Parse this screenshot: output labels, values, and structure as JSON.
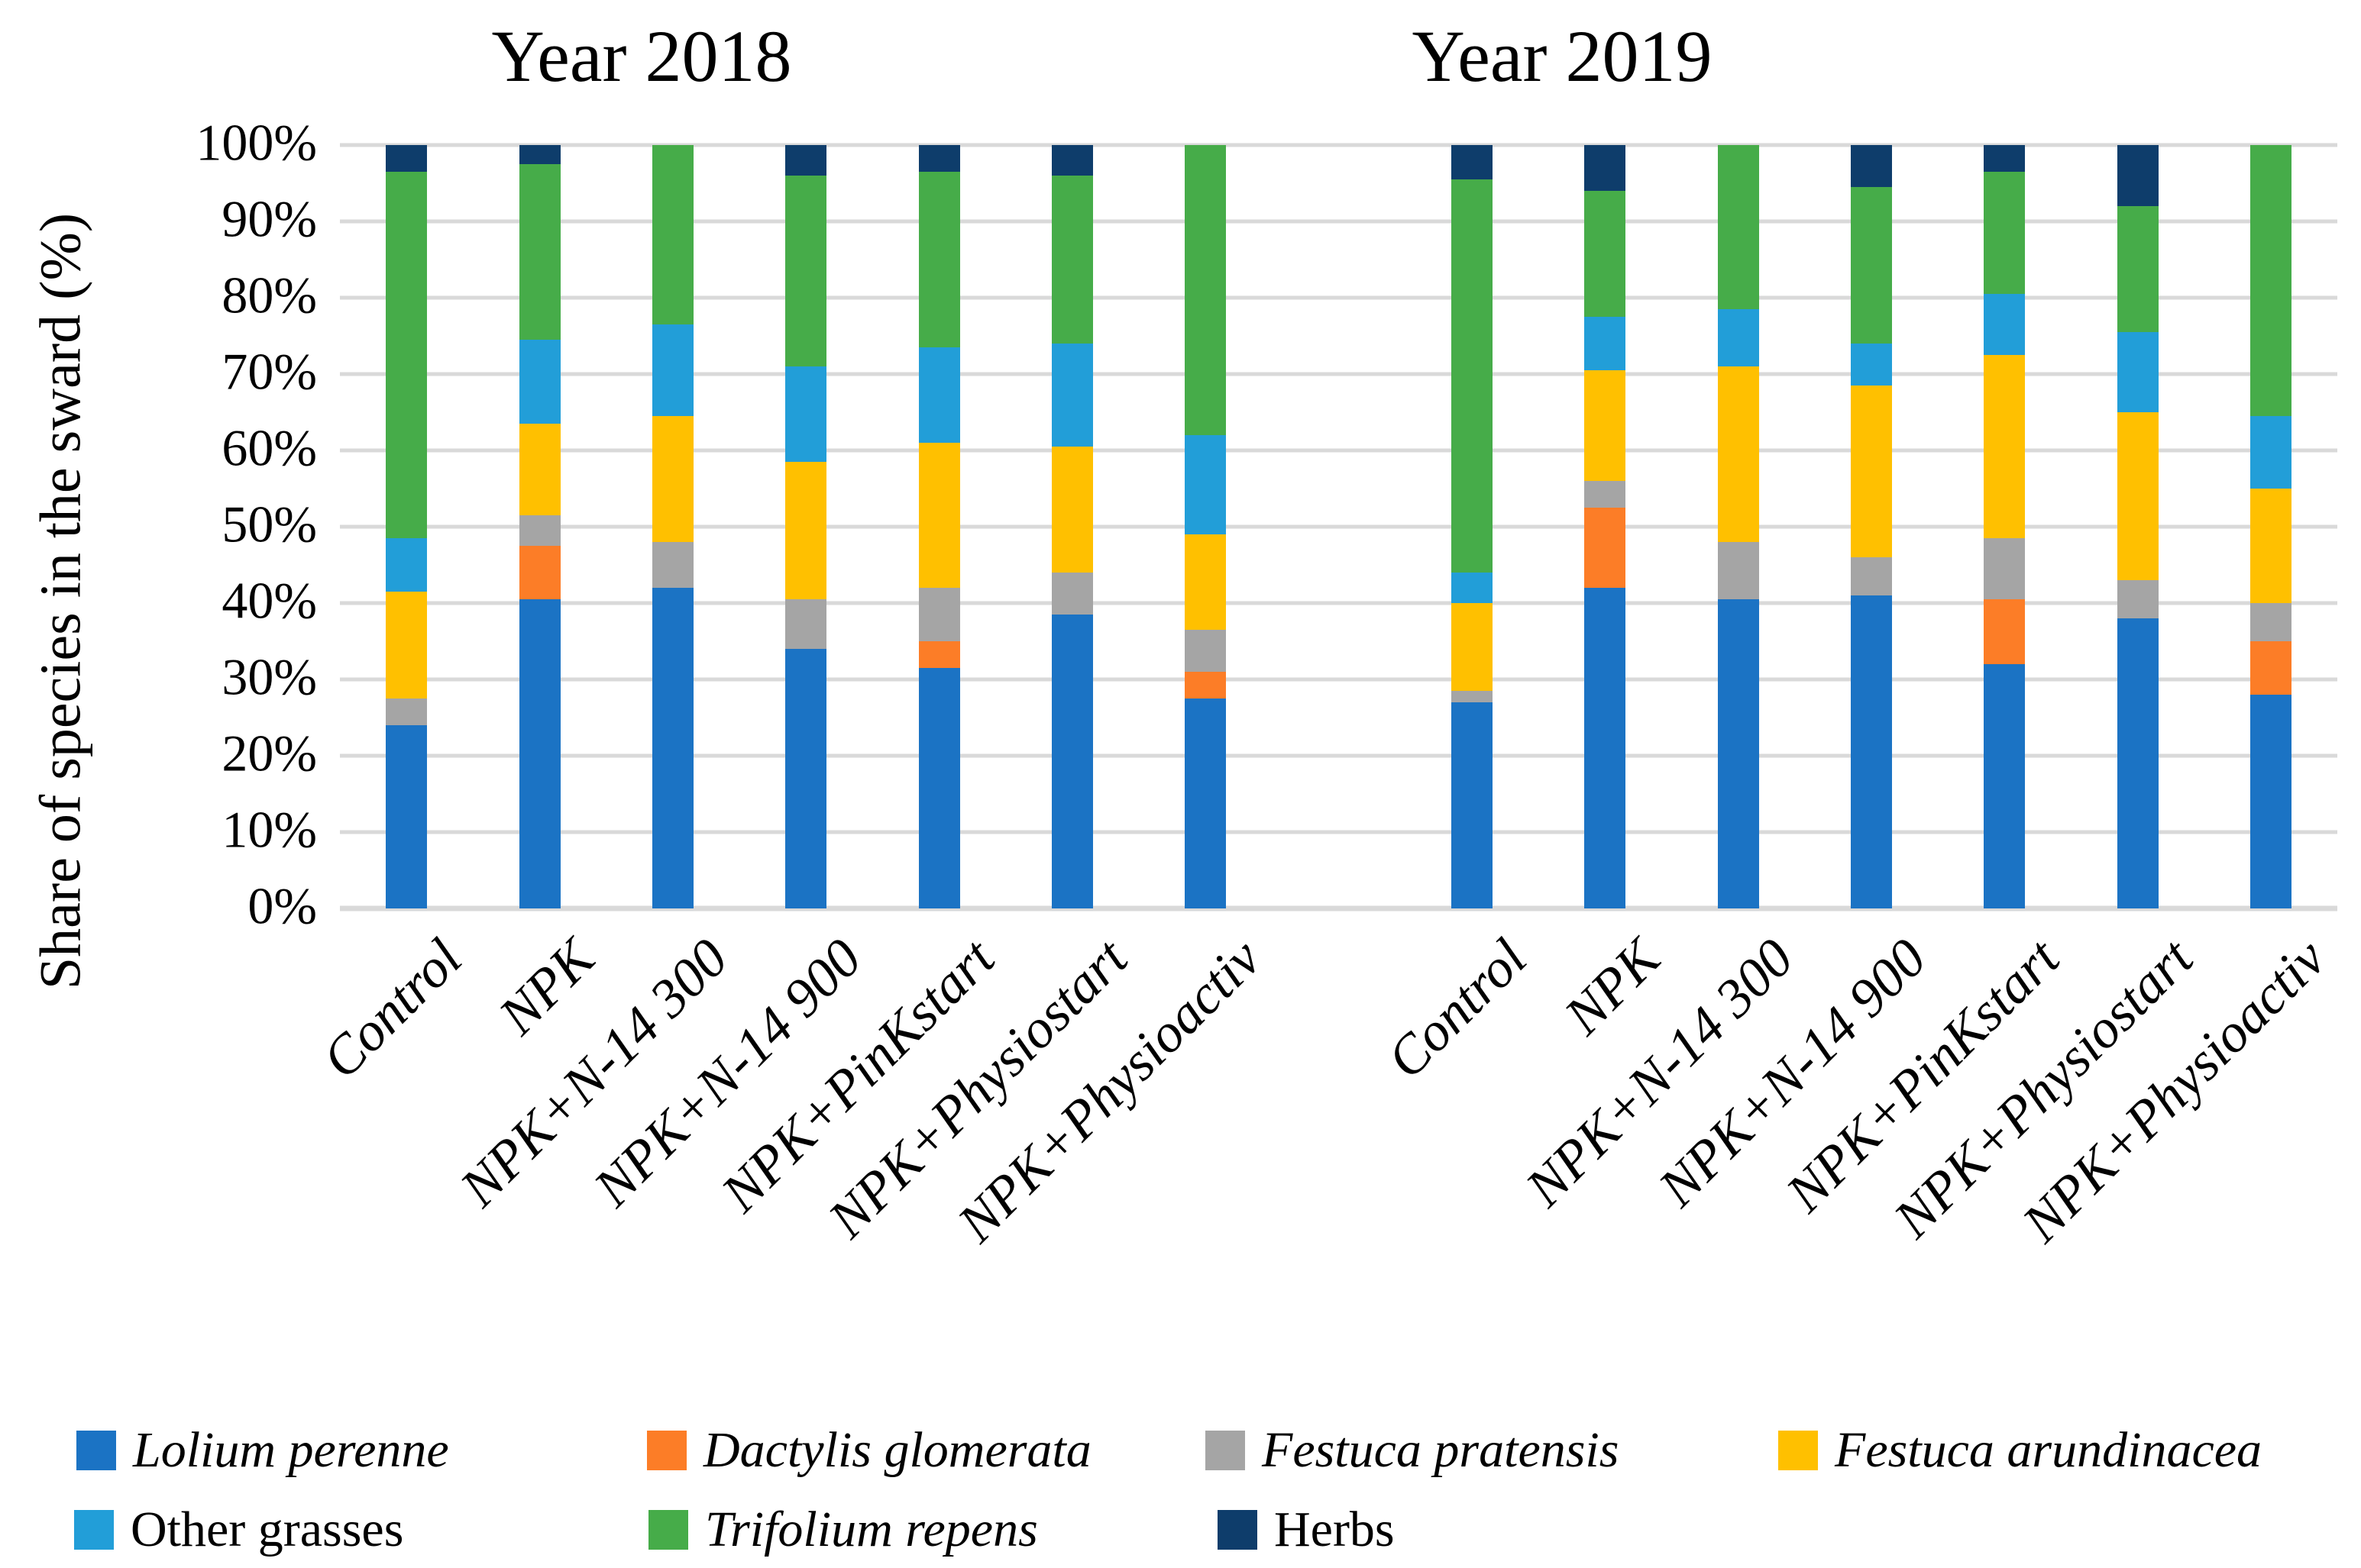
{
  "chart_data": {
    "type": "bar",
    "subtype": "stacked-100-percent",
    "ylabel": "Share of species in the sward (%)",
    "ylim": [
      0,
      100
    ],
    "grid": "horizontal",
    "gridline_color": "#D9D9D9",
    "y_ticks": [
      "100%",
      "90%",
      "80%",
      "70%",
      "60%",
      "50%",
      "40%",
      "30%",
      "20%",
      "10%",
      "0%"
    ],
    "groups": [
      {
        "key": "2018",
        "title": "Year 2018"
      },
      {
        "key": "2019",
        "title": "Year 2019"
      }
    ],
    "categories": [
      "Control",
      "NPK",
      "NPK+N-14 300",
      "NPK+N-14 900",
      "NPK+PinKstart",
      "NPK+Physiostart",
      "NPK+Physioactiv"
    ],
    "series": [
      {
        "name": "Lolium perenne",
        "color": "#1B73C4",
        "italic": true,
        "values": {
          "2018": [
            24,
            40.5,
            42,
            34,
            31.5,
            38.5,
            27.5
          ],
          "2019": [
            27,
            42,
            40.5,
            41,
            32,
            38,
            28
          ]
        }
      },
      {
        "name": "Dactylis glomerata",
        "color": "#FC7D27",
        "italic": true,
        "values": {
          "2018": [
            0,
            7,
            0,
            0,
            3.5,
            0,
            3.5
          ],
          "2019": [
            0,
            10.5,
            0,
            0,
            8.5,
            0,
            7
          ]
        }
      },
      {
        "name": "Festuca pratensis",
        "color": "#A5A5A5",
        "italic": true,
        "values": {
          "2018": [
            3.5,
            4,
            6,
            6.5,
            7,
            5.5,
            5.5
          ],
          "2019": [
            1.5,
            3.5,
            7.5,
            5,
            8,
            5,
            5
          ]
        }
      },
      {
        "name": "Festuca arundinacea",
        "color": "#FFC000",
        "italic": true,
        "values": {
          "2018": [
            14,
            12,
            16.5,
            18,
            19,
            16.5,
            12.5
          ],
          "2019": [
            11.5,
            14.5,
            23,
            22.5,
            24,
            22,
            15
          ]
        }
      },
      {
        "name": "Other grasses",
        "color": "#229ED8",
        "italic": false,
        "values": {
          "2018": [
            7,
            11,
            12,
            12.5,
            12.5,
            13.5,
            13
          ],
          "2019": [
            4,
            7,
            7.5,
            5.5,
            8,
            10.5,
            9.5
          ]
        }
      },
      {
        "name": "Trifolium repens",
        "color": "#46AC49",
        "italic": true,
        "values": {
          "2018": [
            48,
            23,
            23.5,
            25,
            23,
            22,
            38
          ],
          "2019": [
            51.5,
            16.5,
            21.5,
            20.5,
            16,
            16.5,
            35.5
          ]
        }
      },
      {
        "name": "Herbs",
        "color": "#0E3D6B",
        "italic": false,
        "values": {
          "2018": [
            3.5,
            2.5,
            0,
            4,
            3.5,
            4,
            0
          ],
          "2019": [
            4.5,
            6,
            0,
            5.5,
            3.5,
            8,
            0
          ]
        }
      }
    ]
  }
}
